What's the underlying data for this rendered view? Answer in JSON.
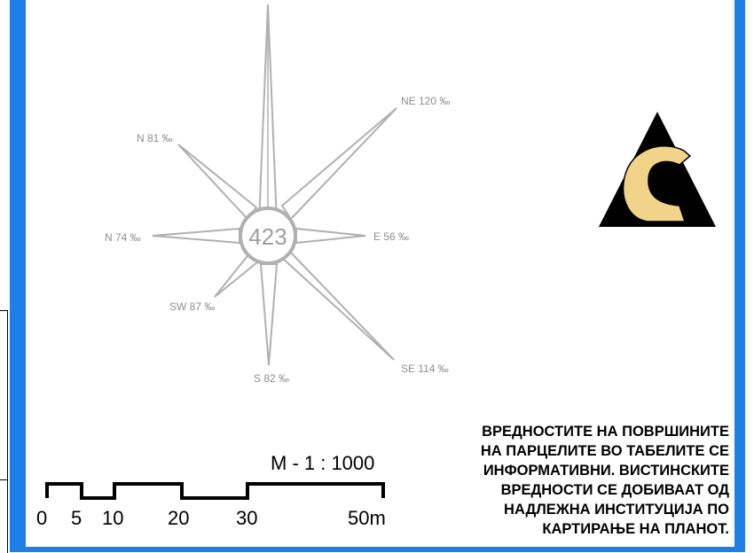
{
  "wind_rose": {
    "center_value": "423",
    "directions": [
      {
        "label": "N 81 ‰",
        "azimuth_deg": 315,
        "strength": 81
      },
      {
        "label": "NE 120 ‰",
        "azimuth_deg": 45,
        "strength": 120
      },
      {
        "label": "E 56 ‰",
        "azimuth_deg": 90,
        "strength": 56
      },
      {
        "label": "SE 114 ‰",
        "azimuth_deg": 135,
        "strength": 114
      },
      {
        "label": "S 82 ‰",
        "azimuth_deg": 180,
        "strength": 82
      },
      {
        "label": "SW 87 ‰",
        "azimuth_deg": 225,
        "strength": 87
      },
      {
        "label": "N 74 ‰",
        "azimuth_deg": 270,
        "strength": 74
      }
    ]
  },
  "scale": {
    "ratio_label": "M - 1 : 1000",
    "ticks": [
      "0",
      "5",
      "10",
      "20",
      "30",
      "50m"
    ]
  },
  "note": {
    "lines": [
      "ВРЕДНОСТИТЕ НА ПОВРШИНИТЕ",
      "НА ПАРЦЕЛИТЕ ВО ТАБЕЛИТЕ СЕ",
      "ИНФОРМАТИВНИ. ВИСТИНСКИТЕ",
      "ВРЕДНОСТИ СЕ ДОБИВААТ ОД",
      "НАДЛЕЖНА ИНСТИТУЦИЈА ПО",
      "КАРТИРАЊЕ НА ПЛАНОТ."
    ]
  },
  "colors": {
    "frame_blue": "#1E7FE6",
    "logo_gold": "#F2D38A",
    "rose_gray": "#b0b0b0"
  },
  "logo": {
    "icon": "ac-triangle-logo"
  }
}
